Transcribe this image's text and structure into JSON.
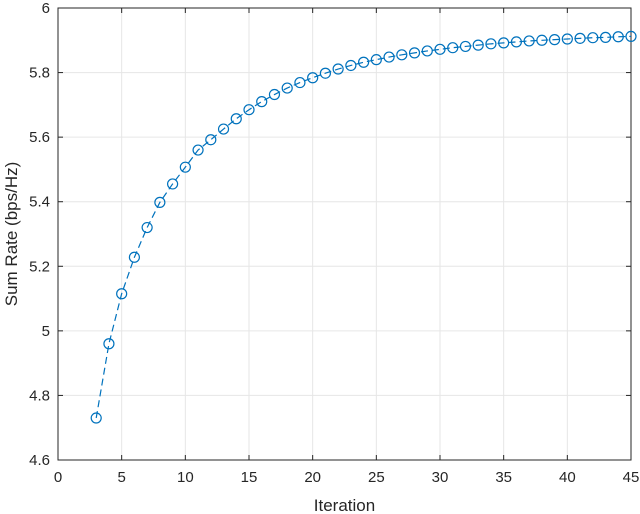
{
  "chart_data": {
    "type": "line",
    "title": "",
    "xlabel": "Iteration",
    "ylabel": "Sum Rate (bps/Hz)",
    "xlim": [
      0,
      45
    ],
    "ylim": [
      4.6,
      6
    ],
    "xticks": [
      0,
      5,
      10,
      15,
      20,
      25,
      30,
      35,
      40,
      45
    ],
    "yticks": [
      4.6,
      4.8,
      5,
      5.2,
      5.4,
      5.6,
      5.8,
      6
    ],
    "xtick_labels": [
      "0",
      "5",
      "10",
      "15",
      "20",
      "25",
      "30",
      "35",
      "40",
      "45"
    ],
    "ytick_labels": [
      "4.6",
      "4.8",
      "5",
      "5.2",
      "5.4",
      "5.6",
      "5.8",
      "6"
    ],
    "grid": true,
    "legend": false,
    "colors": {
      "series": "#0072BD",
      "grid": "#e6e6e6",
      "axis": "#262626"
    },
    "series": [
      {
        "line_style": "dashed",
        "marker": "circle",
        "x": [
          3,
          4,
          5,
          6,
          7,
          8,
          9,
          10,
          11,
          12,
          13,
          14,
          15,
          16,
          17,
          18,
          19,
          20,
          21,
          22,
          23,
          24,
          25,
          26,
          27,
          28,
          29,
          30,
          31,
          32,
          33,
          34,
          35,
          36,
          37,
          38,
          39,
          40,
          41,
          42,
          43,
          44,
          45
        ],
        "y": [
          4.73,
          4.96,
          5.115,
          5.228,
          5.32,
          5.398,
          5.455,
          5.507,
          5.56,
          5.592,
          5.625,
          5.657,
          5.685,
          5.71,
          5.732,
          5.752,
          5.769,
          5.784,
          5.798,
          5.811,
          5.822,
          5.832,
          5.84,
          5.848,
          5.855,
          5.861,
          5.867,
          5.872,
          5.877,
          5.881,
          5.885,
          5.889,
          5.892,
          5.895,
          5.898,
          5.9,
          5.902,
          5.904,
          5.906,
          5.908,
          5.909,
          5.911,
          5.912
        ]
      }
    ]
  }
}
